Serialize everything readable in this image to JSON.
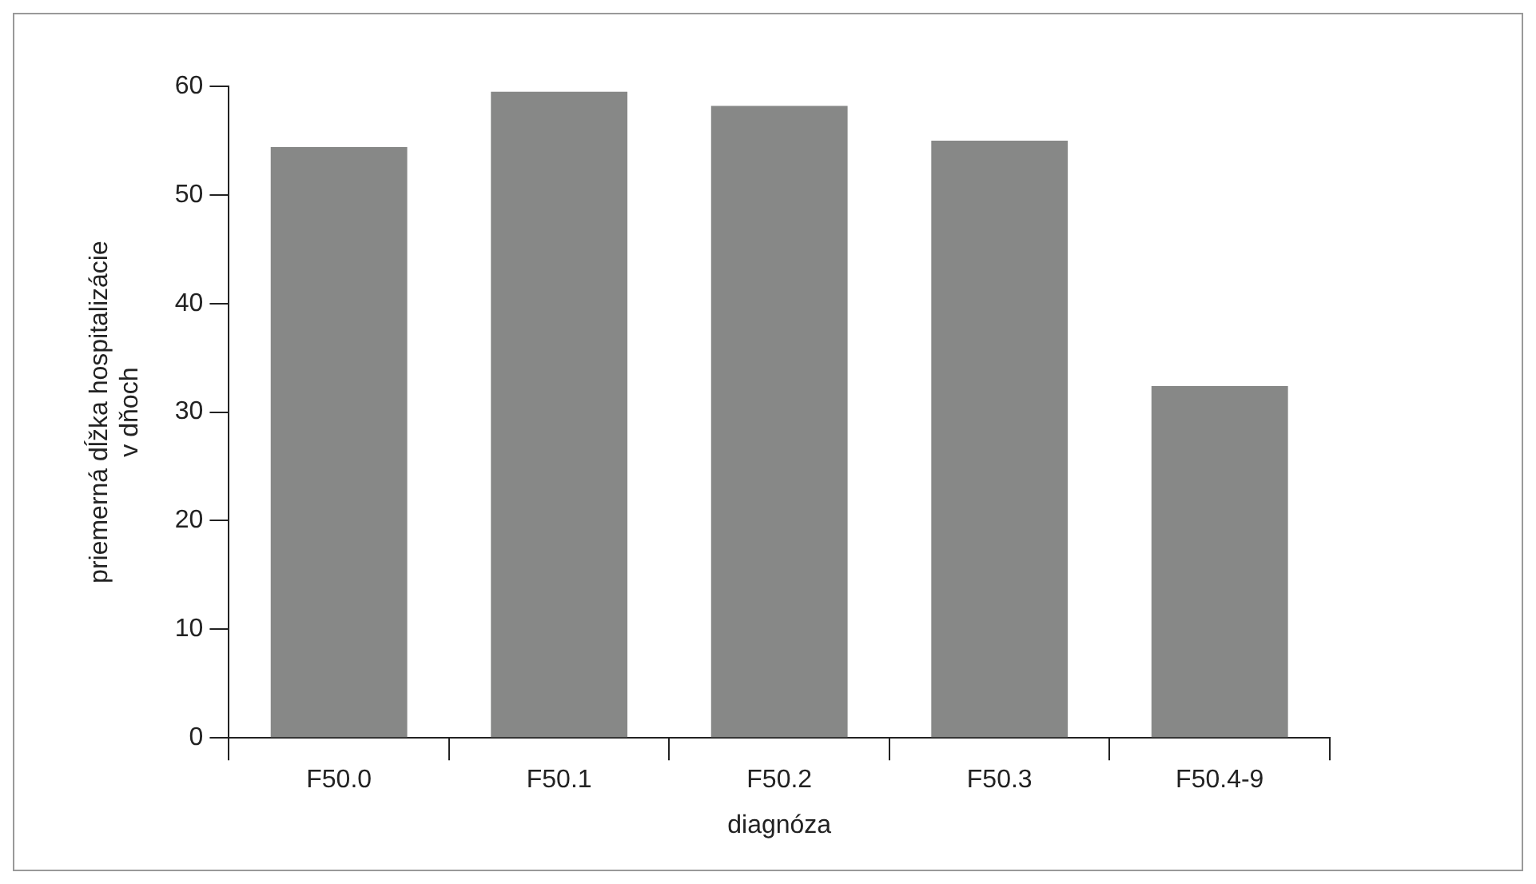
{
  "chart_data": {
    "type": "bar",
    "xlabel": "diagnóza",
    "ylabel": "priemerná dĺžka hospitalizácie v dňoch",
    "categories": [
      "F50.0",
      "F50.1",
      "F50.2",
      "F50.3",
      "F50.4-9"
    ],
    "values": [
      54.4,
      59.5,
      58.2,
      55.0,
      32.4
    ],
    "color": "#878887",
    "ylim": [
      0,
      60
    ],
    "yticks": [
      0,
      10,
      20,
      30,
      40,
      50,
      60
    ],
    "grid": false,
    "legend": false
  }
}
